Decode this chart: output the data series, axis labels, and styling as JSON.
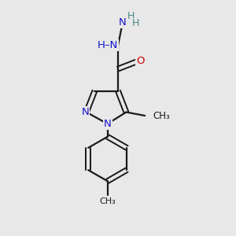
{
  "bg_color": "#e8e8e8",
  "N_color": "#1414cc",
  "O_color": "#cc0000",
  "C_color": "#1a1a1a",
  "H_color": "#4a8888",
  "bond_color": "#1a1a1a",
  "figsize": [
    3.0,
    3.0
  ],
  "dpi": 100,
  "xlim": [
    0,
    10
  ],
  "ylim": [
    0,
    10
  ]
}
